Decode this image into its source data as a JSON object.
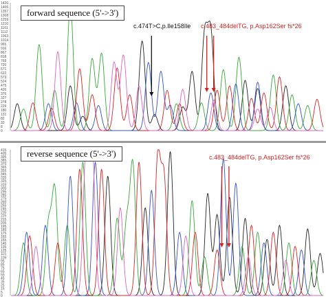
{
  "colors": {
    "A": "#33aa33",
    "C": "#3050d0",
    "G": "#222222",
    "T": "#e02020",
    "P": "#e060c0",
    "axis": "#777777",
    "annotation_black": "#111111",
    "annotation_red": "#d42020"
  },
  "chart_data": [
    {
      "type": "line",
      "title": "forward sequence (5'->3')",
      "ylim": [
        0,
        1426
      ],
      "xlim": [
        0,
        100
      ],
      "y_ticks": [
        "1426",
        "1406",
        "1357",
        "1308",
        "1259",
        "1210",
        "1161",
        "1112",
        "1063",
        "1014",
        "965",
        "916",
        "867",
        "818",
        "769",
        "720",
        "671",
        "622",
        "573",
        "524",
        "475",
        "426",
        "376",
        "327",
        "278",
        "229",
        "180",
        "131",
        "82",
        "33",
        "8",
        "0"
      ],
      "annotations": [
        {
          "label": "c.474T>C,p.Ile158Ile",
          "color": "black",
          "x": 45
        },
        {
          "label": "c.483_484delTG, p.Asp162Ser fs*26",
          "color": "red",
          "x": [
            62.7,
            64.9
          ]
        }
      ],
      "series": [
        {
          "base": "G",
          "peaks": [
            [
              2,
              300
            ],
            [
              19,
              500
            ],
            [
              23,
              160
            ],
            [
              42,
              1000
            ],
            [
              46,
              180
            ],
            [
              55,
              260
            ],
            [
              58,
              660
            ],
            [
              62,
              1040
            ],
            [
              64,
              1060
            ],
            [
              75,
              560
            ],
            [
              79,
              470
            ],
            [
              88,
              500
            ]
          ]
        },
        {
          "base": "A",
          "peaks": [
            [
              4,
              240
            ],
            [
              9,
              960
            ],
            [
              14,
              450
            ],
            [
              19,
              1390
            ],
            [
              26,
              800
            ],
            [
              29,
              860
            ],
            [
              53,
              300
            ],
            [
              61,
              310
            ],
            [
              68,
              680
            ],
            [
              73,
              820
            ],
            [
              84,
              620
            ],
            [
              90,
              400
            ],
            [
              95,
              280
            ]
          ]
        },
        {
          "base": "C",
          "peaks": [
            [
              12,
              300
            ],
            [
              21,
              310
            ],
            [
              28,
              280
            ],
            [
              44,
              760
            ],
            [
              48,
              660
            ],
            [
              51,
              280
            ],
            [
              64,
              420
            ],
            [
              72,
              520
            ],
            [
              79,
              540
            ],
            [
              92,
              300
            ]
          ]
        },
        {
          "base": "T",
          "peaks": [
            [
              7,
              310
            ],
            [
              13,
              250
            ],
            [
              22,
              690
            ],
            [
              26,
              400
            ],
            [
              34,
              700
            ],
            [
              38,
              400
            ],
            [
              50,
              450
            ],
            [
              54,
              300
            ],
            [
              66,
              450
            ],
            [
              70,
              500
            ],
            [
              77,
              360
            ],
            [
              81,
              420
            ],
            [
              86,
              600
            ],
            [
              98,
              350
            ]
          ]
        },
        {
          "base": "P",
          "peaks": [
            [
              15,
              880
            ],
            [
              33,
              760
            ],
            [
              36,
              840
            ],
            [
              41,
              500
            ],
            [
              55,
              460
            ],
            [
              65,
              340
            ],
            [
              79,
              240
            ],
            [
              83,
              260
            ]
          ]
        }
      ]
    },
    {
      "type": "line",
      "title": "reverse sequence (5'->3')",
      "ylim": [
        0,
        415
      ],
      "xlim": [
        0,
        100
      ],
      "y_ticks": [
        "415",
        "405",
        "395",
        "385",
        "375",
        "365",
        "355",
        "345",
        "335",
        "325",
        "315",
        "305",
        "295",
        "285",
        "275",
        "265",
        "255",
        "245",
        "235",
        "225",
        "215",
        "205",
        "195",
        "185",
        "175",
        "165",
        "155",
        "145",
        "135",
        "125",
        "115",
        "105",
        "95",
        "85",
        "75",
        "65",
        "55",
        "45",
        "35",
        "25",
        "15",
        "5",
        "0"
      ],
      "annotations": [
        {
          "label": "c.483_484delTG, p.Asp162Ser fs*26",
          "color": "red",
          "x": [
            67.5,
            69.8
          ]
        }
      ],
      "series": [
        {
          "base": "G",
          "peaks": [
            [
              31,
              340
            ],
            [
              43,
              250
            ],
            [
              51,
              410
            ],
            [
              63,
              290
            ],
            [
              66,
              230
            ],
            [
              70,
              280
            ],
            [
              75,
              220
            ],
            [
              82,
              160
            ],
            [
              86,
              200
            ],
            [
              95,
              190
            ],
            [
              99,
              120
            ]
          ]
        },
        {
          "base": "A",
          "peaks": [
            [
              4,
              150
            ],
            [
              12,
              200
            ],
            [
              14,
              300
            ],
            [
              18,
              200
            ],
            [
              23,
              380
            ],
            [
              34,
              220
            ],
            [
              37,
              200
            ],
            [
              39,
              370
            ],
            [
              58,
              270
            ],
            [
              62,
              110
            ],
            [
              74,
              140
            ],
            [
              79,
              180
            ],
            [
              89,
              150
            ],
            [
              97,
              100
            ]
          ]
        },
        {
          "base": "C",
          "peaks": [
            [
              5,
              180
            ],
            [
              11,
              200
            ],
            [
              19,
              340
            ],
            [
              27,
              380
            ],
            [
              45,
              300
            ],
            [
              54,
              180
            ],
            [
              68,
              390
            ],
            [
              72,
              320
            ],
            [
              81,
              150
            ],
            [
              93,
              130
            ]
          ]
        },
        {
          "base": "T",
          "peaks": [
            [
              6,
              170
            ],
            [
              15,
              150
            ],
            [
              22,
              360
            ],
            [
              29,
              360
            ],
            [
              41,
              380
            ],
            [
              47,
              390
            ],
            [
              49,
              330
            ],
            [
              59,
              180
            ],
            [
              66,
              130
            ],
            [
              77,
              200
            ],
            [
              84,
              180
            ],
            [
              91,
              140
            ]
          ]
        },
        {
          "base": "P",
          "peaks": [
            [
              8,
              140
            ],
            [
              24,
              400
            ],
            [
              26,
              410
            ],
            [
              35,
              250
            ],
            [
              56,
              170
            ],
            [
              76,
              110
            ],
            [
              88,
              100
            ]
          ]
        }
      ]
    }
  ]
}
